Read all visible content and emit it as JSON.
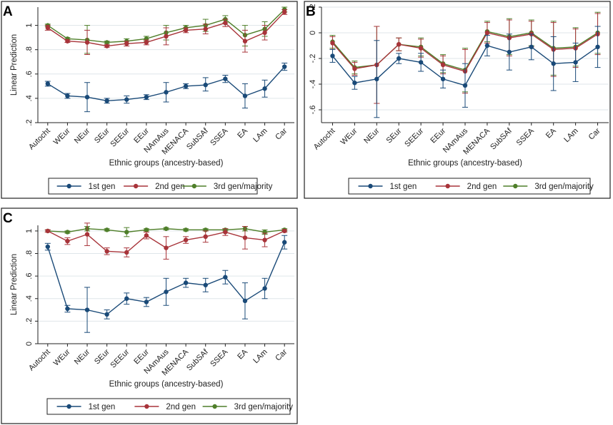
{
  "colors": {
    "gen1": "#1a4a78",
    "gen2": "#a8343a",
    "gen3": "#4f7f2a",
    "grid": "#dfe6ea",
    "frame": "#222222"
  },
  "chart_data": [
    {
      "type": "line",
      "panel_label": "A",
      "xlabel": "Ethnic groups (ancestry-based)",
      "ylabel": "Linear Prediction",
      "ylim": [
        0.2,
        1.15
      ],
      "yticks": [
        0.2,
        0.4,
        0.6,
        0.8,
        1.0
      ],
      "ytick_labels": [
        ".2",
        ".4",
        ".6",
        ".8",
        "1"
      ],
      "categories": [
        "Autocht",
        "WEur",
        "NEur",
        "SEur",
        "SEEur",
        "EEur",
        "NAmAus",
        "MENACA",
        "SubSAf",
        "SSEA",
        "EA",
        "LAm",
        "Car"
      ],
      "legend": [
        "1st gen",
        "2nd gen",
        "3rd gen/majority"
      ],
      "series": [
        {
          "name": "1st gen",
          "values": [
            0.52,
            0.42,
            0.41,
            0.38,
            0.39,
            0.41,
            0.45,
            0.5,
            0.51,
            0.56,
            0.42,
            0.48,
            0.66
          ],
          "lower": [
            0.5,
            0.4,
            0.29,
            0.36,
            0.36,
            0.39,
            0.37,
            0.48,
            0.46,
            0.53,
            0.32,
            0.41,
            0.63
          ],
          "upper": [
            0.54,
            0.44,
            0.53,
            0.4,
            0.42,
            0.43,
            0.53,
            0.52,
            0.57,
            0.59,
            0.52,
            0.55,
            0.69
          ]
        },
        {
          "name": "2nd gen",
          "values": [
            0.98,
            0.87,
            0.86,
            0.83,
            0.85,
            0.86,
            0.91,
            0.96,
            0.97,
            1.02,
            0.87,
            0.94,
            1.11
          ],
          "lower": [
            0.96,
            0.86,
            0.76,
            0.82,
            0.83,
            0.84,
            0.84,
            0.94,
            0.93,
            0.99,
            0.78,
            0.88,
            1.09
          ],
          "upper": [
            1.0,
            0.88,
            0.96,
            0.84,
            0.87,
            0.88,
            0.98,
            0.98,
            1.01,
            1.05,
            0.96,
            1.0,
            1.13
          ]
        },
        {
          "name": "3rd gen/majority",
          "values": [
            1.0,
            0.89,
            0.88,
            0.86,
            0.87,
            0.89,
            0.94,
            0.98,
            1.0,
            1.05,
            0.92,
            0.97,
            1.13
          ],
          "lower": [
            0.99,
            0.88,
            0.77,
            0.85,
            0.85,
            0.87,
            0.88,
            0.96,
            0.95,
            1.02,
            0.83,
            0.91,
            1.11
          ],
          "upper": [
            1.01,
            0.9,
            1.0,
            0.87,
            0.89,
            0.91,
            1.0,
            1.0,
            1.05,
            1.08,
            1.0,
            1.03,
            1.15
          ]
        }
      ]
    },
    {
      "type": "line",
      "panel_label": "B",
      "xlabel": "Ethnic groups (ancestry-based)",
      "ylabel": "",
      "ylim": [
        -0.7,
        0.2
      ],
      "yticks": [
        -0.6,
        -0.4,
        -0.2,
        0.0,
        0.2
      ],
      "ytick_labels": [
        "-.6",
        "-.4",
        "-.2",
        "0",
        ".2"
      ],
      "categories": [
        "Autocht",
        "WEur",
        "NEur",
        "SEur",
        "SEEur",
        "EEur",
        "NAmAus",
        "MENACA",
        "SubSAf",
        "SSEA",
        "EA",
        "LAm",
        "Car"
      ],
      "legend": [
        "1st gen",
        "2nd gen",
        "3rd gen/majority"
      ],
      "series": [
        {
          "name": "1st gen",
          "values": [
            -0.18,
            -0.39,
            -0.36,
            -0.2,
            -0.23,
            -0.36,
            -0.41,
            -0.1,
            -0.15,
            -0.11,
            -0.24,
            -0.23,
            -0.11
          ],
          "lower": [
            -0.23,
            -0.44,
            -0.66,
            -0.24,
            -0.3,
            -0.43,
            -0.58,
            -0.18,
            -0.29,
            -0.21,
            -0.45,
            -0.38,
            -0.27
          ],
          "upper": [
            -0.13,
            -0.34,
            -0.06,
            -0.16,
            -0.16,
            -0.29,
            -0.24,
            -0.02,
            -0.01,
            -0.01,
            -0.03,
            -0.08,
            0.05
          ]
        },
        {
          "name": "2nd gen",
          "values": [
            -0.08,
            -0.28,
            -0.25,
            -0.09,
            -0.12,
            -0.25,
            -0.3,
            0.0,
            -0.04,
            -0.01,
            -0.13,
            -0.12,
            -0.01
          ],
          "lower": [
            -0.13,
            -0.33,
            -0.55,
            -0.14,
            -0.19,
            -0.32,
            -0.47,
            -0.08,
            -0.18,
            -0.11,
            -0.34,
            -0.27,
            -0.17
          ],
          "upper": [
            -0.03,
            -0.23,
            0.05,
            -0.04,
            -0.05,
            -0.18,
            -0.13,
            0.08,
            0.1,
            0.09,
            0.08,
            0.03,
            0.15
          ]
        },
        {
          "name": "3rd gen/majority",
          "values": [
            -0.07,
            -0.27,
            -0.25,
            -0.09,
            -0.11,
            -0.24,
            -0.29,
            0.01,
            -0.03,
            0.0,
            -0.12,
            -0.11,
            0.0
          ],
          "lower": [
            -0.12,
            -0.32,
            -0.55,
            -0.14,
            -0.18,
            -0.31,
            -0.46,
            -0.07,
            -0.17,
            -0.1,
            -0.33,
            -0.26,
            -0.16
          ],
          "upper": [
            -0.02,
            -0.22,
            0.05,
            -0.04,
            -0.04,
            -0.17,
            -0.12,
            0.09,
            0.11,
            0.1,
            0.09,
            0.04,
            0.16
          ]
        }
      ]
    },
    {
      "type": "line",
      "panel_label": "C",
      "xlabel": "Ethnic groups (ancestry-based)",
      "ylabel": "Linear Prediction",
      "ylim": [
        0,
        1.05
      ],
      "yticks": [
        0,
        0.2,
        0.4,
        0.6,
        0.8,
        1.0
      ],
      "ytick_labels": [
        "0",
        ".2",
        ".4",
        ".6",
        ".8",
        "1"
      ],
      "categories": [
        "Autocht",
        "WEur",
        "NEur",
        "SEur",
        "SEEur",
        "EEur",
        "NAmAus",
        "MENACA",
        "SubSAf",
        "SSEA",
        "EA",
        "LAm",
        "Car"
      ],
      "legend": [
        "1st gen",
        "2nd gen",
        "3rd gen/majority"
      ],
      "series": [
        {
          "name": "1st gen",
          "values": [
            0.86,
            0.31,
            0.3,
            0.26,
            0.4,
            0.37,
            0.46,
            0.54,
            0.52,
            0.59,
            0.38,
            0.49,
            0.9
          ],
          "lower": [
            0.83,
            0.28,
            0.1,
            0.22,
            0.35,
            0.33,
            0.34,
            0.5,
            0.46,
            0.53,
            0.22,
            0.4,
            0.84
          ],
          "upper": [
            0.89,
            0.34,
            0.5,
            0.3,
            0.45,
            0.41,
            0.58,
            0.58,
            0.58,
            0.65,
            0.54,
            0.58,
            0.96
          ]
        },
        {
          "name": "2nd gen",
          "values": [
            1.0,
            0.91,
            0.97,
            0.82,
            0.81,
            0.96,
            0.85,
            0.92,
            0.95,
            0.99,
            0.94,
            0.92,
            1.0
          ],
          "lower": [
            0.99,
            0.88,
            0.87,
            0.79,
            0.77,
            0.93,
            0.75,
            0.89,
            0.9,
            0.96,
            0.84,
            0.86,
            0.99
          ],
          "upper": [
            1.01,
            0.94,
            1.07,
            0.85,
            0.85,
            0.99,
            0.95,
            0.95,
            1.0,
            1.02,
            1.04,
            0.98,
            1.01
          ]
        },
        {
          "name": "3rd gen/majority",
          "values": [
            1.0,
            0.99,
            1.02,
            1.01,
            0.99,
            1.01,
            1.02,
            1.01,
            1.01,
            1.01,
            1.02,
            0.99,
            1.01
          ],
          "lower": [
            0.99,
            0.98,
            1.0,
            1.0,
            0.95,
            1.0,
            1.01,
            1.0,
            1.0,
            1.0,
            1.0,
            0.97,
            1.0
          ],
          "upper": [
            1.01,
            1.0,
            1.04,
            1.02,
            1.03,
            1.02,
            1.03,
            1.02,
            1.02,
            1.02,
            1.04,
            1.01,
            1.02
          ]
        }
      ]
    }
  ]
}
